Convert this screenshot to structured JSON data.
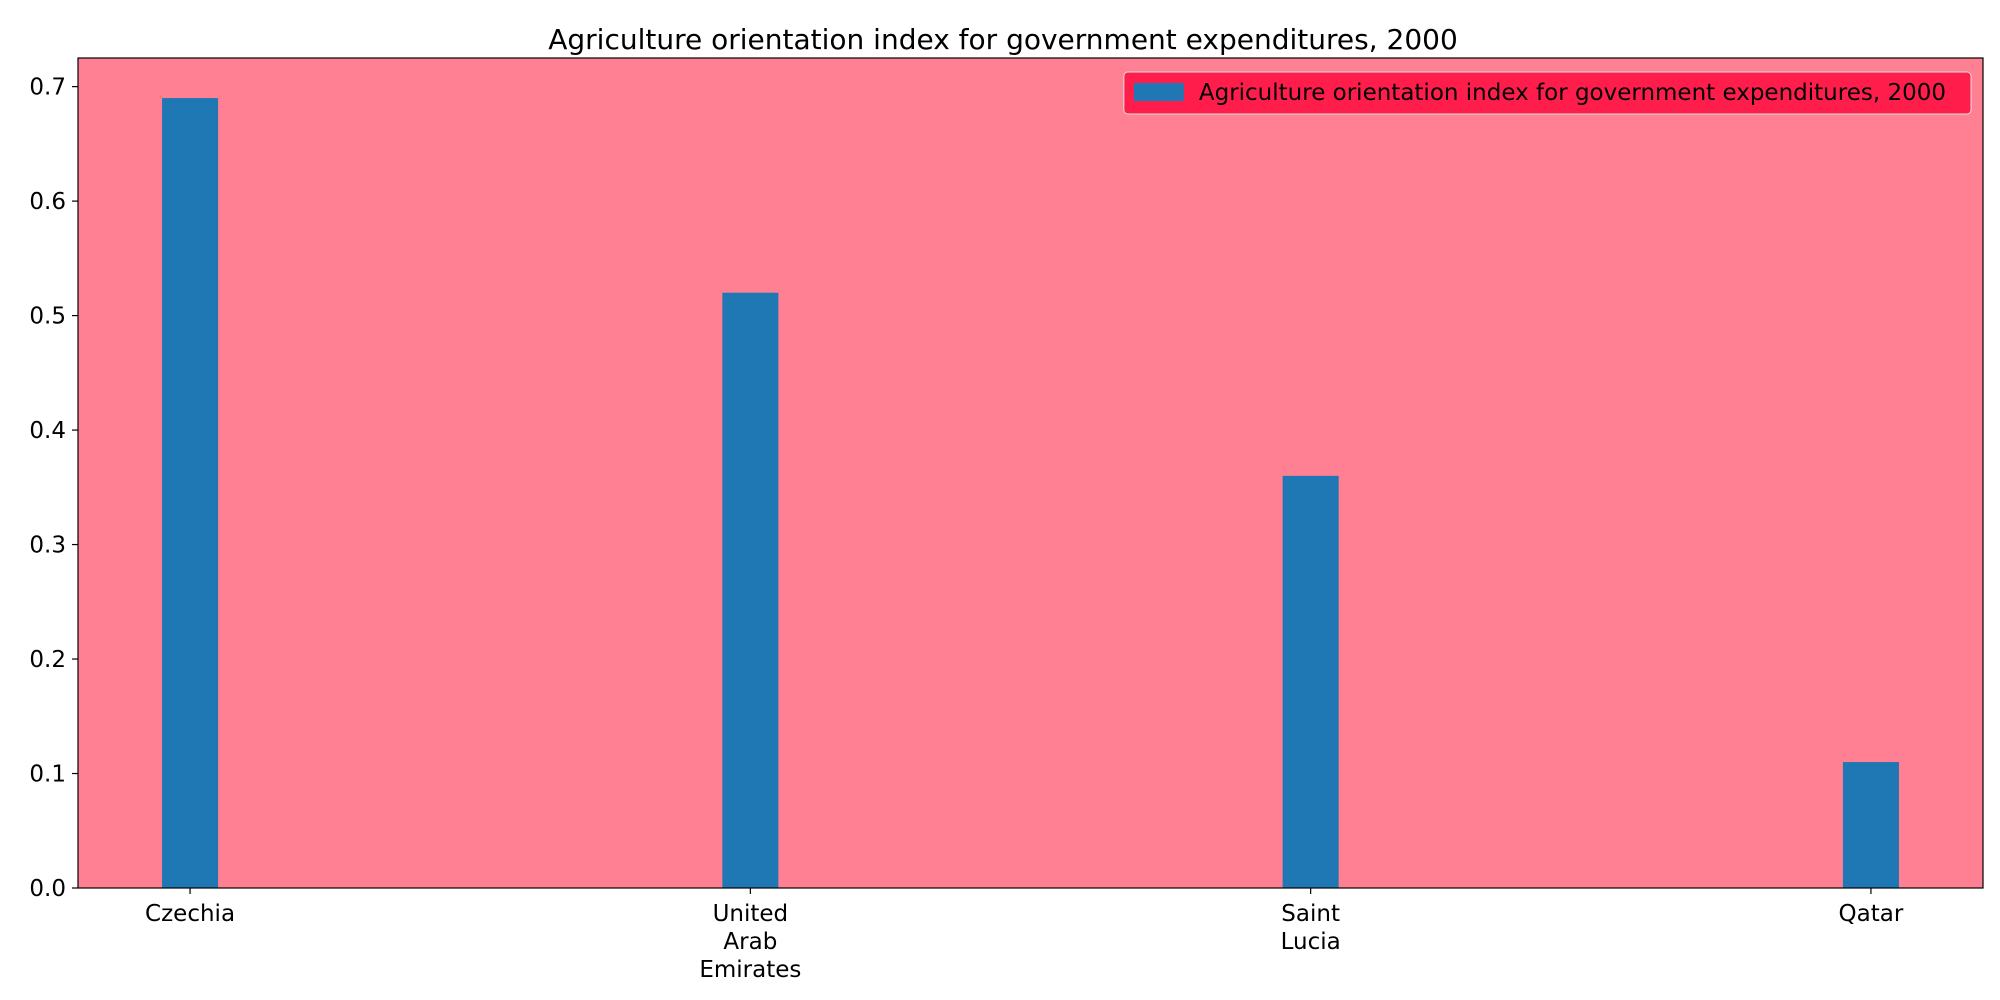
{
  "chart_data": {
    "type": "bar",
    "title": "Agriculture orientation index for government expenditures, 2000",
    "xlabel": "",
    "ylabel": "",
    "categories": [
      "Czechia",
      "United Arab Emirates",
      "Saint Lucia",
      "Qatar"
    ],
    "series": [
      {
        "name": "Agriculture orientation index for government expenditures, 2000",
        "values": [
          0.69,
          0.52,
          0.36,
          0.11
        ]
      }
    ],
    "ylim": [
      0,
      0.725
    ],
    "yticks": [
      0.0,
      0.1,
      0.2,
      0.3,
      0.4,
      0.5,
      0.6,
      0.7
    ],
    "ytick_labels": [
      "0.0",
      "0.1",
      "0.2",
      "0.3",
      "0.4",
      "0.5",
      "0.6",
      "0.7"
    ],
    "grid": false,
    "legend_position": "top-right",
    "colors": {
      "bar": "#1f77b4",
      "plot_background": "#ff8093",
      "legend_background": "#ff1e4b",
      "axis": "#000000"
    }
  }
}
